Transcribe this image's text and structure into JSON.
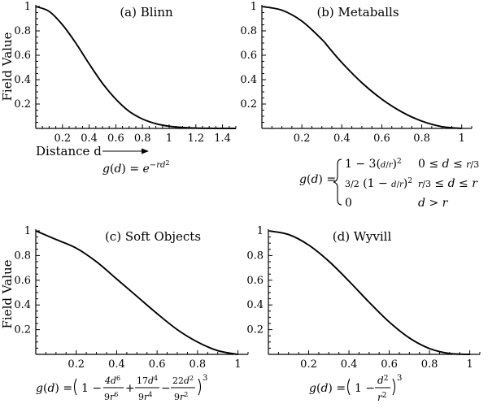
{
  "chart_data": [
    {
      "type": "line",
      "title": "(a) Blinn",
      "ylabel": "Field Value",
      "xlabel": "Distance d",
      "xlim": [
        0,
        1.5
      ],
      "ylim": [
        0,
        1
      ],
      "xticks": [
        "0.2",
        "0.4",
        "0.6",
        "0.8",
        "1",
        "1.2",
        "1.4"
      ],
      "xtick_values": [
        0.2,
        0.4,
        0.6,
        0.8,
        1.0,
        1.2,
        1.4
      ],
      "yticks": [
        "0.2",
        "0.4",
        "0.6",
        "0.8",
        "1"
      ],
      "ytick_values": [
        0.2,
        0.4,
        0.6,
        0.8,
        1.0
      ],
      "formula": "g(d) = e^(−rd²)",
      "series": [
        {
          "x": [
            0,
            0.1,
            0.2,
            0.3,
            0.4,
            0.5,
            0.6,
            0.7,
            0.8,
            0.9,
            1.0,
            1.1,
            1.2,
            1.3,
            1.4,
            1.5
          ],
          "values": [
            1.0,
            0.96,
            0.85,
            0.7,
            0.53,
            0.37,
            0.24,
            0.14,
            0.077,
            0.039,
            0.018,
            0.008,
            0.003,
            0.001,
            0.0004,
            0.0001
          ]
        }
      ]
    },
    {
      "type": "line",
      "title": "(b) Metaballs",
      "ylabel": "",
      "xlabel": "",
      "xlim": [
        0,
        1.05
      ],
      "ylim": [
        0,
        1
      ],
      "xticks": [
        "0.2",
        "0.4",
        "0.6",
        "0.8",
        "1"
      ],
      "xtick_values": [
        0.2,
        0.4,
        0.6,
        0.8,
        1.0
      ],
      "yticks": [
        "0.2",
        "0.4",
        "0.6",
        "0.8",
        "1"
      ],
      "ytick_values": [
        0.2,
        0.4,
        0.6,
        0.8,
        1.0
      ],
      "formula": "g(d) = { 1 − 3(d/r)²  0 ≤ d ≤ r/3 ; 3/2 (1 − d/r)²  r/3 ≤ d ≤ r ; 0  d > r }",
      "series": [
        {
          "x": [
            0,
            0.1,
            0.2,
            0.3,
            0.3333,
            0.4,
            0.5,
            0.6,
            0.7,
            0.8,
            0.9,
            1.0
          ],
          "values": [
            1.0,
            0.97,
            0.88,
            0.73,
            0.667,
            0.54,
            0.375,
            0.24,
            0.135,
            0.06,
            0.015,
            0.0
          ]
        }
      ]
    },
    {
      "type": "line",
      "title": "(c) Soft Objects",
      "ylabel": "Field Value",
      "xlabel": "",
      "xlim": [
        0,
        1.05
      ],
      "ylim": [
        0,
        1
      ],
      "xticks": [
        "0.2",
        "0.4",
        "0.6",
        "0.8",
        "1"
      ],
      "xtick_values": [
        0.2,
        0.4,
        0.6,
        0.8,
        1.0
      ],
      "yticks": [
        "0.2",
        "0.4",
        "0.6",
        "0.8",
        "1"
      ],
      "ytick_values": [
        0.2,
        0.4,
        0.6,
        0.8,
        1.0
      ],
      "formula": "g(d) = (1 − 4d⁶/9r⁶ + 17d⁴/9r⁴ − 22d²/9r²)³",
      "series": [
        {
          "x": [
            0,
            0.1,
            0.2,
            0.3,
            0.4,
            0.5,
            0.6,
            0.7,
            0.8,
            0.9,
            1.0
          ],
          "values": [
            1.0,
            0.93,
            0.86,
            0.75,
            0.61,
            0.47,
            0.33,
            0.2,
            0.1,
            0.03,
            0.0
          ]
        }
      ]
    },
    {
      "type": "line",
      "title": "(d) Wyvill",
      "ylabel": "",
      "xlabel": "",
      "xlim": [
        0,
        1.05
      ],
      "ylim": [
        0,
        1
      ],
      "xticks": [
        "0.2",
        "0.4",
        "0.6",
        "0.8",
        "1"
      ],
      "xtick_values": [
        0.2,
        0.4,
        0.6,
        0.8,
        1.0
      ],
      "yticks": [
        "0.2",
        "0.4",
        "0.6",
        "0.8",
        "1"
      ],
      "ytick_values": [
        0.2,
        0.4,
        0.6,
        0.8,
        1.0
      ],
      "formula": "g(d) = (1 − d²/r²)³",
      "series": [
        {
          "x": [
            0,
            0.1,
            0.2,
            0.3,
            0.4,
            0.5,
            0.6,
            0.7,
            0.8,
            0.9,
            1.0
          ],
          "values": [
            1.0,
            0.97,
            0.885,
            0.754,
            0.593,
            0.422,
            0.262,
            0.133,
            0.047,
            0.007,
            0.0
          ]
        }
      ]
    }
  ]
}
